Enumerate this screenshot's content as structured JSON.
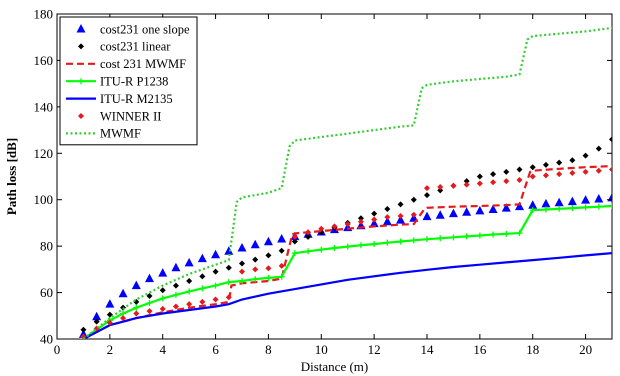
{
  "chart_data": {
    "type": "line",
    "xlabel": "Distance (m)",
    "ylabel": "Path loss [dB]",
    "xlim": [
      0,
      21
    ],
    "ylim": [
      40,
      180
    ],
    "xticks": [
      0,
      2,
      4,
      6,
      8,
      10,
      12,
      14,
      16,
      18,
      20
    ],
    "yticks": [
      40,
      60,
      80,
      100,
      120,
      140,
      160,
      180
    ],
    "legend_position": "top-left",
    "grid": false,
    "series": [
      {
        "name": "cost231 one slope",
        "color": "#0000ff",
        "style": "triangle-markers",
        "x": [
          1,
          1.5,
          2,
          2.5,
          3,
          3.5,
          4,
          4.5,
          5,
          5.5,
          6,
          6.5,
          7,
          7.5,
          8,
          8.5,
          9,
          9.5,
          10,
          10.5,
          11,
          11.5,
          12,
          12.5,
          13,
          13.5,
          14,
          14.5,
          15,
          15.5,
          16,
          16.5,
          17,
          17.5,
          18,
          18.5,
          19,
          19.5,
          20,
          20.5,
          21
        ],
        "y": [
          42,
          49.6,
          55,
          59.5,
          63,
          66,
          68.4,
          70.7,
          72.8,
          74.6,
          76.3,
          77.8,
          79.2,
          80.6,
          81.9,
          83.1,
          84.1,
          85.1,
          86.1,
          87.1,
          88,
          88.8,
          89.7,
          90.5,
          91.2,
          92,
          92.7,
          93.3,
          94,
          94.6,
          95.2,
          95.8,
          96.4,
          97,
          97.6,
          98.2,
          98.7,
          99.2,
          99.8,
          100.3,
          100.8
        ]
      },
      {
        "name": "cost231 linear",
        "color": "#000000",
        "style": "diamond-markers",
        "x": [
          1,
          1.5,
          2,
          2.5,
          3,
          3.5,
          4,
          4.5,
          5,
          5.5,
          6,
          6.5,
          7,
          7.5,
          8,
          8.5,
          9,
          9.5,
          10,
          10.5,
          11,
          11.5,
          12,
          12.5,
          13,
          13.5,
          14,
          14.5,
          15,
          15.5,
          16,
          16.5,
          17,
          17.5,
          18,
          18.5,
          19,
          19.5,
          20,
          20.5,
          21
        ],
        "y": [
          44,
          47.5,
          50.5,
          53.5,
          56,
          58.5,
          61,
          63,
          65,
          67,
          69,
          70.7,
          72.5,
          74.2,
          76,
          78,
          82,
          84,
          86,
          88,
          90,
          92,
          94,
          96,
          98,
          100,
          102,
          104,
          106,
          108,
          110,
          111,
          112,
          113,
          114,
          115,
          116,
          117,
          119,
          122,
          126
        ]
      },
      {
        "name": "cost 231 MWMF",
        "color": "#e41a1c",
        "style": "dashed",
        "x": [
          1,
          2,
          3,
          4,
          5,
          6,
          6.5,
          6.6,
          7,
          8,
          8.5,
          8.9,
          9,
          10,
          11,
          12,
          13,
          13.5,
          13.9,
          14,
          15,
          16,
          17,
          17.5,
          17.9,
          18,
          19,
          20,
          21
        ],
        "y": [
          40,
          46,
          49,
          51.5,
          53.5,
          55,
          56,
          63,
          64,
          65,
          66,
          85,
          85.5,
          86.5,
          87.5,
          88.5,
          89.3,
          89.5,
          96,
          96.5,
          97,
          97.3,
          97.7,
          98,
          112,
          112.5,
          113.3,
          114,
          114.5
        ]
      },
      {
        "name": "ITU-R P1238",
        "color": "#00ff00",
        "style": "solid-plus",
        "x": [
          1,
          1.5,
          2,
          2.5,
          3,
          3.5,
          4,
          4.5,
          5,
          5.5,
          6,
          6.5,
          7,
          7.5,
          8,
          8.5,
          9,
          9.5,
          10,
          10.5,
          11,
          11.5,
          12,
          12.5,
          13,
          13.5,
          14,
          14.5,
          15,
          15.5,
          16,
          16.5,
          17,
          17.5,
          18,
          18.5,
          19,
          19.5,
          20,
          20.5,
          21
        ],
        "y": [
          40,
          44,
          48,
          51,
          53.5,
          55.5,
          57.5,
          59,
          60.5,
          61.8,
          63,
          64.5,
          65,
          65.8,
          66.3,
          66.8,
          77,
          77.8,
          78.5,
          79.2,
          79.8,
          80.4,
          80.9,
          81.5,
          82,
          82.5,
          83,
          83.4,
          83.8,
          84.2,
          84.6,
          85,
          85.3,
          85.6,
          95.5,
          95.8,
          96.1,
          96.4,
          96.7,
          97,
          97.3
        ]
      },
      {
        "name": "ITU-R M2135",
        "color": "#0000ff",
        "style": "solid",
        "x": [
          1,
          2,
          3,
          4,
          5,
          6,
          6.5,
          7,
          8,
          9,
          10,
          11,
          12,
          13,
          14,
          15,
          16,
          17,
          18,
          19,
          20,
          21
        ],
        "y": [
          40,
          46,
          49,
          51,
          52.5,
          54,
          55,
          57,
          59.5,
          61.5,
          63.5,
          65.5,
          67,
          68.5,
          69.8,
          71,
          72,
          73,
          74,
          75,
          76,
          77
        ]
      },
      {
        "name": "WINNER II",
        "color": "#e41a1c",
        "style": "diamond-markers",
        "x": [
          1,
          1.5,
          2,
          2.5,
          3,
          3.5,
          4,
          4.5,
          5,
          5.5,
          6,
          6.5,
          7,
          7.5,
          8,
          8.5,
          9,
          9.5,
          10,
          10.5,
          11,
          11.5,
          12,
          12.5,
          13,
          13.5,
          14,
          14.5,
          15,
          15.5,
          16,
          16.5,
          17,
          17.5,
          18,
          18.5,
          19,
          19.5,
          20,
          20.5,
          21
        ],
        "y": [
          41,
          44.5,
          47,
          49,
          51,
          52,
          53,
          54,
          55,
          56,
          57,
          58,
          69,
          70,
          70.5,
          71.5,
          84,
          86,
          87.5,
          88.5,
          89.5,
          90.5,
          91.5,
          92.5,
          93,
          93.5,
          105,
          105.5,
          106,
          106.5,
          107,
          107.5,
          108,
          108.5,
          110,
          110.5,
          111,
          111.5,
          112,
          112.5,
          113
        ]
      },
      {
        "name": "MWMF",
        "color": "#33cc33",
        "style": "dotted",
        "x": [
          1,
          2,
          3,
          4,
          5,
          6,
          6.5,
          6.8,
          7,
          8,
          8.5,
          8.8,
          9,
          10,
          11,
          12,
          13,
          13.5,
          13.8,
          14,
          15,
          16,
          17,
          17.5,
          17.8,
          18,
          19,
          20,
          21
        ],
        "y": [
          40,
          49,
          57,
          63,
          68,
          72,
          74,
          99,
          101,
          103,
          105,
          123,
          125.5,
          127,
          128.5,
          130,
          131.5,
          132,
          148,
          149.5,
          151,
          152,
          153,
          154,
          169,
          170.5,
          171.5,
          172.5,
          174
        ]
      }
    ]
  }
}
